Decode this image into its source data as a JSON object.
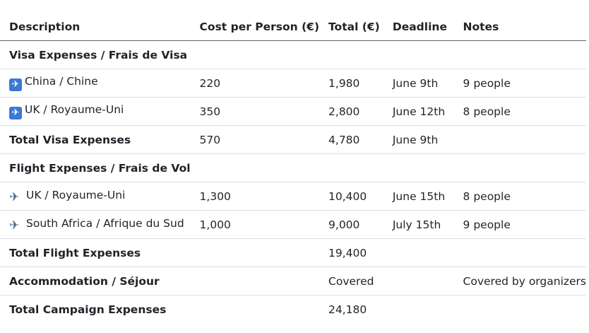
{
  "headers": {
    "description": "Description",
    "cost": "Cost per Person (€)",
    "total": "Total (€)",
    "deadline": "Deadline",
    "notes": "Notes"
  },
  "rows": [
    {
      "type": "section",
      "description": "Visa Expenses / Frais de Visa",
      "cost": "",
      "total": "",
      "deadline": "",
      "notes": ""
    },
    {
      "type": "item",
      "icon": "passport-control-icon",
      "description": "China / Chine",
      "cost": "220",
      "total": "1,980",
      "deadline": "June 9th",
      "notes": "9 people"
    },
    {
      "type": "item",
      "icon": "passport-control-icon",
      "description": "UK / Royaume-Uni",
      "cost": "350",
      "total": "2,800",
      "deadline": "June 12th",
      "notes": "8 people"
    },
    {
      "type": "total",
      "description": "Total Visa Expenses",
      "cost": "570",
      "total": "4,780",
      "deadline": "June 9th",
      "notes": ""
    },
    {
      "type": "section",
      "description": "Flight Expenses / Frais de Vol",
      "cost": "",
      "total": "",
      "deadline": "",
      "notes": ""
    },
    {
      "type": "item",
      "icon": "airplane-icon",
      "description": "UK / Royaume-Uni",
      "cost": "1,300",
      "total": "10,400",
      "deadline": "June 15th",
      "notes": "8 people"
    },
    {
      "type": "item",
      "icon": "airplane-icon",
      "description": "South Africa / Afrique du Sud",
      "cost": "1,000",
      "total": "9,000",
      "deadline": "July 15th",
      "notes": "9 people"
    },
    {
      "type": "total",
      "description": "Total Flight Expenses",
      "cost": "",
      "total": "19,400",
      "deadline": "",
      "notes": ""
    },
    {
      "type": "total",
      "description": "Accommodation / Séjour",
      "cost": "",
      "total": "Covered",
      "deadline": "",
      "notes": "Covered by organizers"
    },
    {
      "type": "total",
      "description": "Total Campaign Expenses",
      "cost": "",
      "total": "24,180",
      "deadline": "",
      "notes": ""
    }
  ]
}
